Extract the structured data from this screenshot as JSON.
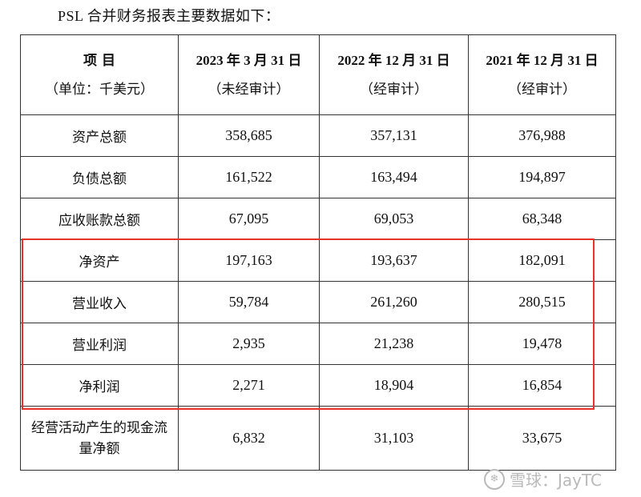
{
  "intro": "PSL 合并财务报表主要数据如下：",
  "header": {
    "item_label": "项  目",
    "unit_label": "（单位：千美元）",
    "cols": [
      {
        "date": "2023 年 3 月 31 日",
        "note": "（未经审计）"
      },
      {
        "date": "2022 年 12 月 31 日",
        "note": "（经审计）"
      },
      {
        "date": "2021 年 12 月 31 日",
        "note": "（经审计）"
      }
    ]
  },
  "rows": [
    {
      "label": "资产总额",
      "values": [
        "358,685",
        "357,131",
        "376,988"
      ]
    },
    {
      "label": "负债总额",
      "values": [
        "161,522",
        "163,494",
        "194,897"
      ]
    },
    {
      "label": "应收账款总额",
      "values": [
        "67,095",
        "69,053",
        "68,348"
      ]
    },
    {
      "label": "净资产",
      "values": [
        "197,163",
        "193,637",
        "182,091"
      ]
    },
    {
      "label": "营业收入",
      "values": [
        "59,784",
        "261,260",
        "280,515"
      ]
    },
    {
      "label": "营业利润",
      "values": [
        "2,935",
        "21,238",
        "19,478"
      ]
    },
    {
      "label": "净利润",
      "values": [
        "2,271",
        "18,904",
        "16,854"
      ]
    }
  ],
  "last_row": {
    "label_line1": "经营活动产生的现金流",
    "label_line2": "量净额",
    "values": [
      "6,832",
      "31,103",
      "33,675"
    ]
  },
  "highlight_color": "#e8322b",
  "watermark": {
    "text": "雪球：JayTC",
    "icon": "snowball-logo-icon"
  }
}
